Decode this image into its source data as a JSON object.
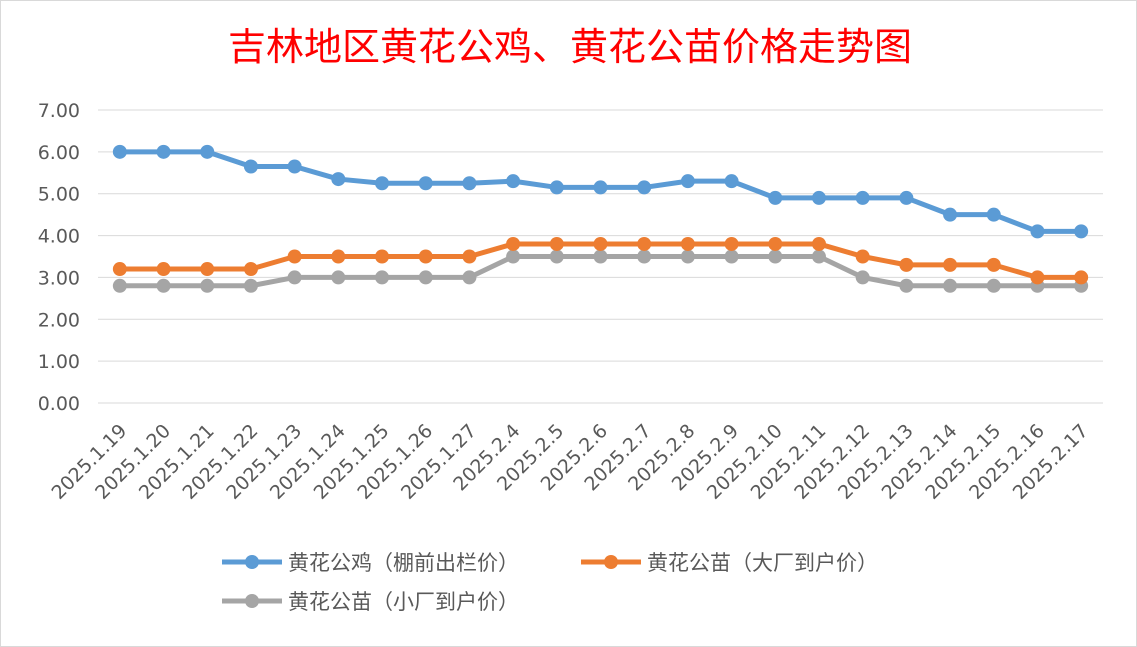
{
  "chart_data": {
    "type": "line",
    "title": "吉林地区黄花公鸡、黄花公苗价格走势图",
    "xlabel": "",
    "ylabel": "",
    "ylim": [
      0,
      7
    ],
    "yticks": [
      "0.00",
      "1.00",
      "2.00",
      "3.00",
      "4.00",
      "5.00",
      "6.00",
      "7.00"
    ],
    "grid": true,
    "legend_position": "bottom",
    "categories": [
      "2025.1.19",
      "2025.1.20",
      "2025.1.21",
      "2025.1.22",
      "2025.1.23",
      "2025.1.24",
      "2025.1.25",
      "2025.1.26",
      "2025.1.27",
      "2025.2.4",
      "2025.2.5",
      "2025.2.6",
      "2025.2.7",
      "2025.2.8",
      "2025.2.9",
      "2025.2.10",
      "2025.2.11",
      "2025.2.12",
      "2025.2.13",
      "2025.2.14",
      "2025.2.15",
      "2025.2.16",
      "2025.2.17"
    ],
    "series": [
      {
        "name": "黄花公鸡（棚前出栏价）",
        "color": "#5b9bd5",
        "values": [
          6.0,
          6.0,
          6.0,
          5.65,
          5.65,
          5.35,
          5.25,
          5.25,
          5.25,
          5.3,
          5.15,
          5.15,
          5.15,
          5.3,
          5.3,
          4.9,
          4.9,
          4.9,
          4.9,
          4.5,
          4.5,
          4.1,
          4.1
        ]
      },
      {
        "name": "黄花公苗（大厂到户价）",
        "color": "#ed7d31",
        "values": [
          3.2,
          3.2,
          3.2,
          3.2,
          3.5,
          3.5,
          3.5,
          3.5,
          3.5,
          3.8,
          3.8,
          3.8,
          3.8,
          3.8,
          3.8,
          3.8,
          3.8,
          3.5,
          3.3,
          3.3,
          3.3,
          3.0,
          3.0
        ]
      },
      {
        "name": "黄花公苗（小厂到户价）",
        "color": "#a5a5a5",
        "values": [
          2.8,
          2.8,
          2.8,
          2.8,
          3.0,
          3.0,
          3.0,
          3.0,
          3.0,
          3.5,
          3.5,
          3.5,
          3.5,
          3.5,
          3.5,
          3.5,
          3.5,
          3.0,
          2.8,
          2.8,
          2.8,
          2.8,
          2.8
        ]
      }
    ]
  }
}
